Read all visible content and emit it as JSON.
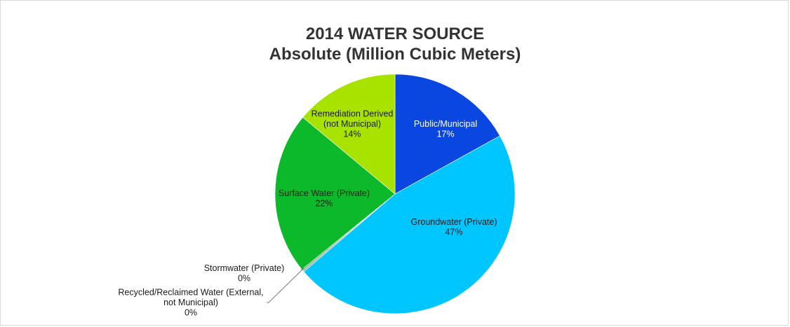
{
  "chart_data": {
    "type": "pie",
    "title": "2014 WATER SOURCE",
    "subtitle": "Absolute (Million Cubic Meters)",
    "slices": [
      {
        "label_lines": [
          "Public/Municipal"
        ],
        "percent_text": "17%",
        "value": 17,
        "color": "#0a47e0",
        "label_dark": true
      },
      {
        "label_lines": [
          "Groundwater (Private)"
        ],
        "percent_text": "47%",
        "value": 47,
        "color": "#00c6ff",
        "label_dark": false
      },
      {
        "label_lines": [
          "Recycled/Reclaimed Water (External,",
          "not Municipal)"
        ],
        "percent_text": "0%",
        "value": 0.2,
        "color": "#9aa0a6",
        "label_dark": false
      },
      {
        "label_lines": [
          "Stormwater (Private)"
        ],
        "percent_text": "0%",
        "value": 0.2,
        "color": "#5cb85c",
        "label_dark": false
      },
      {
        "label_lines": [
          "Surface Water (Private)"
        ],
        "percent_text": "22%",
        "value": 22,
        "color": "#0cb92b",
        "label_dark": false
      },
      {
        "label_lines": [
          "Remediation Derived",
          "(not Municipal)"
        ],
        "percent_text": "14%",
        "value": 14,
        "color": "#a8e300",
        "label_dark": false
      }
    ]
  }
}
